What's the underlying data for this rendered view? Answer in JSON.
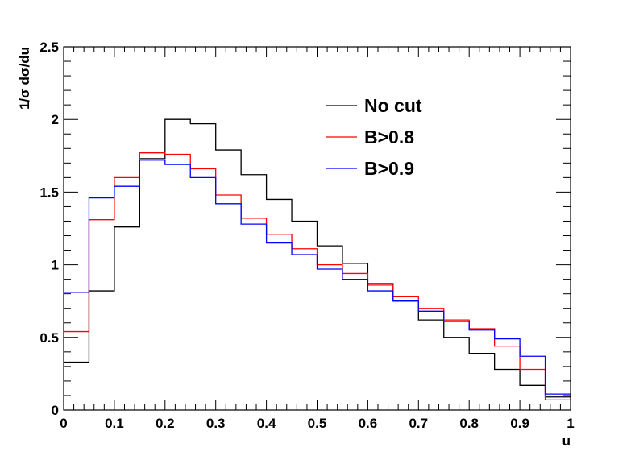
{
  "chart_data": {
    "type": "line",
    "title": "",
    "xlabel": "u",
    "ylabel": "1/σ dσ/du",
    "xlim": [
      0,
      1
    ],
    "ylim": [
      0,
      2.5
    ],
    "grid": false,
    "legend_placement": "top-right",
    "bin_edges": [
      0,
      0.05,
      0.1,
      0.15,
      0.2,
      0.25,
      0.3,
      0.35,
      0.4,
      0.45,
      0.5,
      0.55,
      0.6,
      0.65,
      0.7,
      0.75,
      0.8,
      0.85,
      0.9,
      0.95,
      1.0
    ],
    "x_ticks": [
      "0",
      "0.1",
      "0.2",
      "0.3",
      "0.4",
      "0.5",
      "0.6",
      "0.7",
      "0.8",
      "0.9",
      "1"
    ],
    "x_tick_values": [
      0,
      0.1,
      0.2,
      0.3,
      0.4,
      0.5,
      0.6,
      0.7,
      0.8,
      0.9,
      1.0
    ],
    "y_ticks": [
      "0",
      "0.5",
      "1",
      "1.5",
      "2",
      "2.5"
    ],
    "y_tick_values": [
      0,
      0.5,
      1,
      1.5,
      2,
      2.5
    ],
    "series": [
      {
        "name": "No cut",
        "color": "#000000",
        "values": [
          0.33,
          0.82,
          1.26,
          1.73,
          2.0,
          1.97,
          1.79,
          1.62,
          1.45,
          1.3,
          1.13,
          1.01,
          0.87,
          0.75,
          0.62,
          0.5,
          0.39,
          0.28,
          0.17,
          0.09
        ]
      },
      {
        "name": "B>0.8",
        "color": "#ff0000",
        "values": [
          0.54,
          1.31,
          1.6,
          1.77,
          1.76,
          1.66,
          1.48,
          1.32,
          1.21,
          1.11,
          1.0,
          0.94,
          0.86,
          0.78,
          0.7,
          0.62,
          0.56,
          0.44,
          0.28,
          0.07
        ]
      },
      {
        "name": "B>0.9",
        "color": "#0000ff",
        "values": [
          0.81,
          1.46,
          1.54,
          1.72,
          1.69,
          1.6,
          1.42,
          1.28,
          1.15,
          1.07,
          0.97,
          0.9,
          0.82,
          0.75,
          0.68,
          0.61,
          0.55,
          0.49,
          0.37,
          0.11
        ]
      }
    ]
  }
}
